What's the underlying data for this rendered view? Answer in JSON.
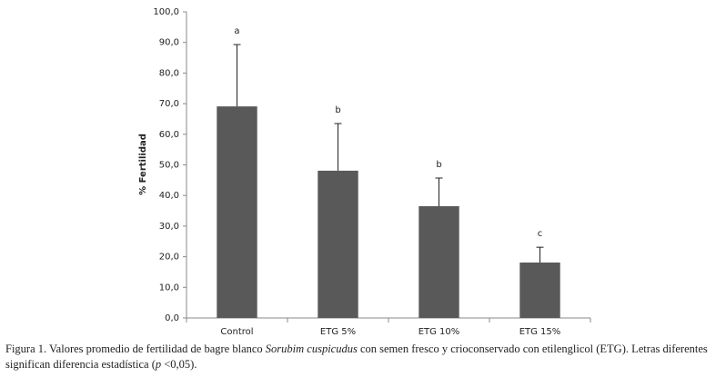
{
  "chart_data": {
    "type": "bar",
    "y_label": "% Fertilidad",
    "categories": [
      "Control",
      "ETG 5%",
      "ETG 10%",
      "ETG 15%"
    ],
    "values": [
      69.1,
      48.1,
      36.5,
      18.1
    ],
    "errors": [
      20.2,
      15.4,
      9.2,
      5.0
    ],
    "significance_labels": [
      "a",
      "b",
      "b",
      "c"
    ],
    "color": "#595959",
    "ylim": [
      0,
      100
    ],
    "yticks": [
      {
        "value": 0,
        "label": "0,0"
      },
      {
        "value": 10,
        "label": "10,0"
      },
      {
        "value": 20,
        "label": "20,0"
      },
      {
        "value": 30,
        "label": "30,0"
      },
      {
        "value": 40,
        "label": "40,0"
      },
      {
        "value": 50,
        "label": "50,0"
      },
      {
        "value": 60,
        "label": "60,0"
      },
      {
        "value": 70,
        "label": "70,0"
      },
      {
        "value": 80,
        "label": "80,0"
      },
      {
        "value": 90,
        "label": "90,0"
      },
      {
        "value": 100,
        "label": "100,0"
      }
    ],
    "grid": false
  },
  "caption": {
    "parts": [
      "Figura 1. Valores promedio de fertilidad de bagre blanco ",
      "Sorubim cuspicudus",
      " con semen fresco y crioconservado con etilenglicol (ETG). Letras diferentes significan diferencia estadística (",
      "p",
      " <0,05)."
    ]
  }
}
